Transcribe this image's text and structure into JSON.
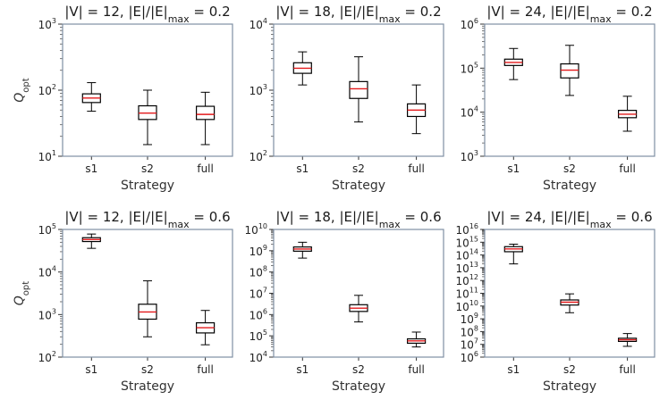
{
  "figure": {
    "ylabel_main": "Q",
    "ylabel_sub": "opt",
    "colors": {
      "box": "#000000",
      "median": "#e31a1c",
      "frame": "#7f8fa3",
      "background": "#ffffff"
    }
  },
  "chart_data": [
    {
      "type": "boxplot",
      "yscale": "log",
      "title_parts": [
        "|V| = 12, |E|/|E|",
        "max",
        " = 0.2"
      ],
      "xlabel": "Strategy",
      "categories": [
        "s1",
        "s2",
        "full"
      ],
      "ylim_exp": [
        1,
        3
      ],
      "boxes": [
        {
          "whislo": 48,
          "q1": 65,
          "med": 76,
          "q3": 88,
          "whishi": 130
        },
        {
          "whislo": 15,
          "q1": 36,
          "med": 45,
          "q3": 58,
          "whishi": 100
        },
        {
          "whislo": 15,
          "q1": 36,
          "med": 43,
          "q3": 57,
          "whishi": 93
        }
      ]
    },
    {
      "type": "boxplot",
      "yscale": "log",
      "title_parts": [
        "|V| = 18, |E|/|E|",
        "max",
        " = 0.2"
      ],
      "xlabel": "Strategy",
      "categories": [
        "s1",
        "s2",
        "full"
      ],
      "ylim_exp": [
        2,
        4
      ],
      "boxes": [
        {
          "whislo": 1200,
          "q1": 1800,
          "med": 2150,
          "q3": 2600,
          "whishi": 3800
        },
        {
          "whislo": 330,
          "q1": 750,
          "med": 1050,
          "q3": 1350,
          "whishi": 3200
        },
        {
          "whislo": 220,
          "q1": 400,
          "med": 500,
          "q3": 620,
          "whishi": 1200
        }
      ]
    },
    {
      "type": "boxplot",
      "yscale": "log",
      "title_parts": [
        "|V| = 24, |E|/|E|",
        "max",
        " = 0.2"
      ],
      "xlabel": "Strategy",
      "categories": [
        "s1",
        "s2",
        "full"
      ],
      "ylim_exp": [
        3,
        6
      ],
      "boxes": [
        {
          "whislo": 55000,
          "q1": 115000,
          "med": 135000,
          "q3": 160000,
          "whishi": 280000
        },
        {
          "whislo": 24000,
          "q1": 60000,
          "med": 90000,
          "q3": 125000,
          "whishi": 330000
        },
        {
          "whislo": 3700,
          "q1": 7500,
          "med": 9000,
          "q3": 11000,
          "whishi": 23000
        }
      ]
    },
    {
      "type": "boxplot",
      "yscale": "log",
      "title_parts": [
        "|V| = 12, |E|/|E|",
        "max",
        " = 0.6"
      ],
      "xlabel": "Strategy",
      "categories": [
        "s1",
        "s2",
        "full"
      ],
      "ylim_exp": [
        2,
        5
      ],
      "boxes": [
        {
          "whislo": 36000,
          "q1": 52000,
          "med": 58000,
          "q3": 64000,
          "whishi": 78000
        },
        {
          "whislo": 300,
          "q1": 780,
          "med": 1150,
          "q3": 1750,
          "whishi": 6200
        },
        {
          "whislo": 195,
          "q1": 370,
          "med": 490,
          "q3": 640,
          "whishi": 1250
        }
      ]
    },
    {
      "type": "boxplot",
      "yscale": "log",
      "title_parts": [
        "|V| = 18, |E|/|E|",
        "max",
        " = 0.6"
      ],
      "xlabel": "Strategy",
      "categories": [
        "s1",
        "s2",
        "full"
      ],
      "ylim_exp": [
        4,
        10
      ],
      "boxes": [
        {
          "whislo": 450000000,
          "q1": 950000000,
          "med": 1200000000,
          "q3": 1500000000,
          "whishi": 2500000000
        },
        {
          "whislo": 450000,
          "q1": 1400000,
          "med": 2000000,
          "q3": 2900000,
          "whishi": 8000000
        },
        {
          "whislo": 30000,
          "q1": 45000,
          "med": 58000,
          "q3": 72000,
          "whishi": 150000
        }
      ]
    },
    {
      "type": "boxplot",
      "yscale": "log",
      "title_parts": [
        "|V| = 24, |E|/|E|",
        "max",
        " = 0.6"
      ],
      "xlabel": "Strategy",
      "categories": [
        "s1",
        "s2",
        "full"
      ],
      "ylim_exp": [
        6,
        16
      ],
      "boxes": [
        {
          "whislo": 20000000000000,
          "q1": 180000000000000,
          "med": 300000000000000,
          "q3": 450000000000000,
          "whishi": 700000000000000
        },
        {
          "whislo": 3000000000,
          "q1": 12000000000,
          "med": 20000000000,
          "q3": 30000000000,
          "whishi": 90000000000
        },
        {
          "whislo": 7000000,
          "q1": 17000000,
          "med": 23000000,
          "q3": 30000000,
          "whishi": 70000000
        }
      ]
    }
  ]
}
